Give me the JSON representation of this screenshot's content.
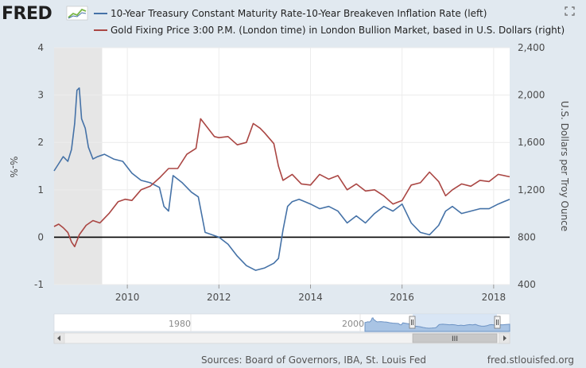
{
  "logo": "FRED",
  "legend": [
    {
      "label": "10-Year Treasury Constant Maturity Rate-10-Year Breakeven Inflation Rate (left)",
      "color": "#4572a7"
    },
    {
      "label": "Gold Fixing Price 3:00 P.M. (London time) in London Bullion Market, based in U.S. Dollars (right)",
      "color": "#aa4643"
    }
  ],
  "left_axis_label": "%-%",
  "right_axis_label": "U.S. Dollars per Troy Ounce",
  "source": "Sources: Board of Governors, IBA, St. Louis Fed",
  "brand": "fred.stlouisfed.org",
  "navigator": {
    "ticks": [
      "1980",
      "2000"
    ],
    "handle": "III"
  },
  "colors": {
    "real_yield": "#4572a7",
    "gold": "#aa4643",
    "recession": "#e6e6e6",
    "background": "#e1e9f0",
    "plot": "#ffffff"
  },
  "chart_data": {
    "type": "line",
    "xlabel": "",
    "xlim": [
      2008.4,
      2018.35
    ],
    "x_ticks": [
      2010,
      2012,
      2014,
      2016,
      2018
    ],
    "left_axis": {
      "ylim": [
        -1,
        4
      ],
      "ticks": [
        -1,
        0,
        1,
        2,
        3,
        4
      ]
    },
    "right_axis": {
      "ylim": [
        400,
        2400
      ],
      "ticks": [
        400,
        800,
        1200,
        1600,
        2000,
        2400
      ],
      "tick_labels": [
        "400",
        "800",
        "1,200",
        "1,600",
        "2,000",
        "2,400"
      ]
    },
    "zero_line": 0,
    "recession": [
      2008.4,
      2009.45
    ],
    "series": [
      {
        "name": "10-Year Treasury Constant Maturity Rate-10-Year Breakeven Inflation Rate (left)",
        "axis": "left",
        "x": [
          2008.4,
          2008.5,
          2008.6,
          2008.7,
          2008.78,
          2008.85,
          2008.9,
          2008.95,
          2009.0,
          2009.08,
          2009.15,
          2009.25,
          2009.35,
          2009.5,
          2009.7,
          2009.9,
          2010.1,
          2010.3,
          2010.5,
          2010.7,
          2010.8,
          2010.9,
          2011.0,
          2011.2,
          2011.4,
          2011.55,
          2011.7,
          2011.85,
          2012.0,
          2012.2,
          2012.4,
          2012.6,
          2012.8,
          2013.0,
          2013.2,
          2013.3,
          2013.4,
          2013.5,
          2013.6,
          2013.75,
          2014.0,
          2014.2,
          2014.4,
          2014.6,
          2014.8,
          2015.0,
          2015.2,
          2015.4,
          2015.6,
          2015.8,
          2016.0,
          2016.2,
          2016.4,
          2016.6,
          2016.8,
          2016.95,
          2017.1,
          2017.3,
          2017.5,
          2017.7,
          2017.9,
          2018.1,
          2018.35
        ],
        "values": [
          1.4,
          1.55,
          1.7,
          1.6,
          1.85,
          2.4,
          3.1,
          3.15,
          2.5,
          2.3,
          1.9,
          1.65,
          1.7,
          1.75,
          1.65,
          1.6,
          1.35,
          1.2,
          1.15,
          1.05,
          0.65,
          0.55,
          1.3,
          1.15,
          0.95,
          0.85,
          0.1,
          0.05,
          0.0,
          -0.15,
          -0.4,
          -0.6,
          -0.7,
          -0.65,
          -0.55,
          -0.45,
          0.15,
          0.65,
          0.75,
          0.8,
          0.7,
          0.6,
          0.65,
          0.55,
          0.3,
          0.45,
          0.3,
          0.5,
          0.65,
          0.55,
          0.7,
          0.3,
          0.1,
          0.05,
          0.25,
          0.55,
          0.65,
          0.5,
          0.55,
          0.6,
          0.6,
          0.7,
          0.8
        ]
      },
      {
        "name": "Gold Fixing Price 3:00 P.M. (London time) in London Bullion Market, based in U.S. Dollars (right)",
        "axis": "right",
        "x": [
          2008.4,
          2008.5,
          2008.6,
          2008.7,
          2008.78,
          2008.85,
          2008.95,
          2009.1,
          2009.25,
          2009.4,
          2009.6,
          2009.8,
          2009.95,
          2010.1,
          2010.3,
          2010.5,
          2010.7,
          2010.9,
          2011.1,
          2011.3,
          2011.5,
          2011.6,
          2011.7,
          2011.8,
          2011.9,
          2012.0,
          2012.2,
          2012.4,
          2012.6,
          2012.75,
          2012.9,
          2013.0,
          2013.2,
          2013.3,
          2013.4,
          2013.6,
          2013.8,
          2014.0,
          2014.2,
          2014.4,
          2014.6,
          2014.8,
          2015.0,
          2015.2,
          2015.4,
          2015.6,
          2015.8,
          2016.0,
          2016.2,
          2016.4,
          2016.6,
          2016.8,
          2016.95,
          2017.1,
          2017.3,
          2017.5,
          2017.7,
          2017.9,
          2018.1,
          2018.35
        ],
        "values": [
          890,
          910,
          880,
          840,
          760,
          720,
          820,
          900,
          940,
          920,
          1000,
          1100,
          1120,
          1110,
          1200,
          1230,
          1300,
          1380,
          1380,
          1500,
          1550,
          1800,
          1750,
          1700,
          1650,
          1640,
          1650,
          1580,
          1600,
          1760,
          1720,
          1680,
          1590,
          1400,
          1280,
          1330,
          1250,
          1240,
          1330,
          1290,
          1320,
          1200,
          1250,
          1190,
          1200,
          1150,
          1080,
          1110,
          1240,
          1260,
          1350,
          1270,
          1150,
          1200,
          1250,
          1230,
          1280,
          1270,
          1330,
          1310
        ]
      }
    ]
  }
}
